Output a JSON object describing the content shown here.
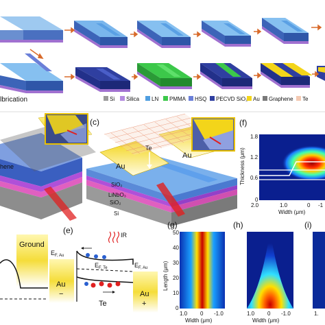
{
  "panel_a": {
    "caption_fragment": "lbrication",
    "legend": [
      {
        "label": "Si",
        "color": "#9a9a9a"
      },
      {
        "label": "Silica",
        "color": "#b48be0"
      },
      {
        "label": "LN",
        "color": "#4f9ee0"
      },
      {
        "label": "PMMA",
        "color": "#3cc84a"
      },
      {
        "label": "HSQ",
        "color": "#6a7fd8"
      },
      {
        "label": "PECVD SiO₂",
        "color": "#2f3fa0"
      },
      {
        "label": "Au",
        "color": "#f3d51a"
      },
      {
        "label": "Graphene",
        "color": "#7a7a7a"
      },
      {
        "label": "Te",
        "color": "#f4c9b2"
      }
    ]
  },
  "panel_b": {
    "au_label": "Au",
    "graphene_label": "hene"
  },
  "panel_c": {
    "tag": "(c)",
    "te_label": "Te",
    "au_left": "Au",
    "au_right": "Au",
    "layers": [
      "SiO₂",
      "LiNbO₃",
      "SiO₂",
      "Si"
    ]
  },
  "panel_f": {
    "tag": "(f)",
    "ylabel": "Thickness (μm)",
    "xlabel": "Width (μm)",
    "yticks": [
      "1.8",
      "1.2",
      "0.6",
      "0"
    ],
    "xticks": [
      "2.0",
      "1.0",
      "0",
      "-1"
    ]
  },
  "panel_d": {
    "ground_label": "Ground"
  },
  "panel_e": {
    "tag": "(e)",
    "left_level": "E",
    "left_level_sub": "F, Au",
    "te_level": "E",
    "te_level_sub": "F, Te",
    "right_level": "E",
    "right_level_sub": "F, Au",
    "ir_label": "IR",
    "au_left": "Au",
    "au_left_sign": "−",
    "au_right": "Au",
    "au_right_sign": "+",
    "te_label": "Te"
  },
  "panel_g": {
    "tag": "(g)",
    "ylabel": "Length (μm)",
    "yticks": [
      "50",
      "40",
      "30",
      "20",
      "10",
      "0"
    ],
    "xticks": [
      "1.0",
      "0",
      "-1.0"
    ],
    "xlabel": "Width (μm)"
  },
  "panel_h": {
    "tag": "(h)",
    "xticks": [
      "1.0",
      "0",
      "-1.0"
    ],
    "xlabel": "Width (μm)"
  },
  "panel_i": {
    "tag": "(i)",
    "xticks": [
      "1."
    ]
  }
}
